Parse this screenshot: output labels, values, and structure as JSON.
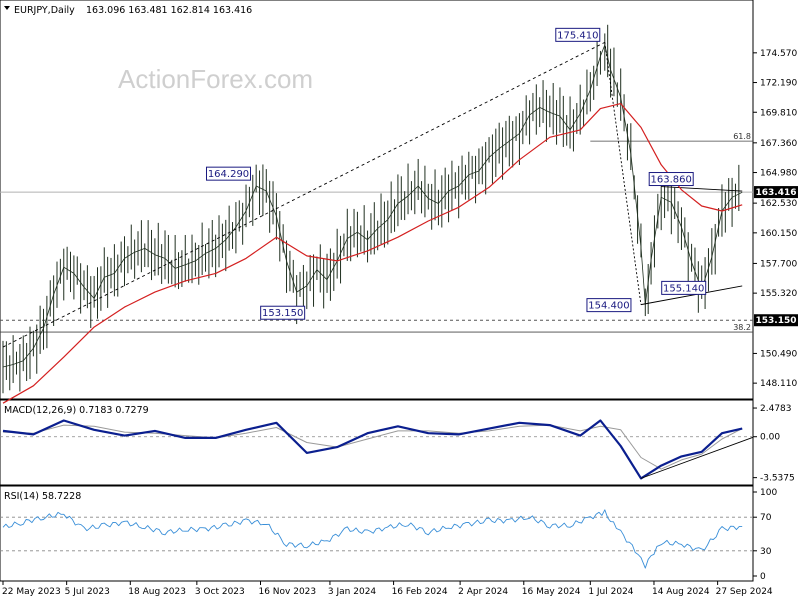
{
  "header": {
    "symbol": "EURJPY,Daily",
    "ohlc": "163.096 163.481 162.814 163.416"
  },
  "watermark": "ActionForex.com",
  "colors": {
    "price": "#1f2f1f",
    "sma": "#d42020",
    "macd": "#0b1f8f",
    "signal": "#9a9a9a",
    "rsi": "#3a8fd8",
    "annotation": "#1a1a80",
    "badge": "#000000"
  },
  "chart_data": [
    {
      "type": "line",
      "name": "price-panel",
      "title": "EURJPY,Daily",
      "x": [
        "2023-05-22",
        "2023-07-05",
        "2023-08-18",
        "2023-10-03",
        "2023-11-16",
        "2024-01-03",
        "2024-02-16",
        "2024-04-02",
        "2024-05-16",
        "2024-07-01",
        "2024-08-14",
        "2024-09-27"
      ],
      "x_tick_labels": [
        "22 May 2023",
        "5 Jul 2023",
        "18 Aug 2023",
        "3 Oct 2023",
        "16 Nov 2023",
        "3 Jan 2024",
        "16 Feb 2024",
        "2 Apr 2024",
        "16 May 2024",
        "1 Jul 2024",
        "14 Aug 2024",
        "27 Sep 2024"
      ],
      "y_tick_labels": [
        "174.570",
        "172.190",
        "169.810",
        "167.360",
        "164.980",
        "162.530",
        "160.150",
        "157.700",
        "155.320",
        "150.490",
        "148.110"
      ],
      "ylim": [
        147.0,
        177.2
      ],
      "series": [
        {
          "type": "price",
          "values": [
            [
              "2023-05-22",
              149.4
            ],
            [
              "2023-05-29",
              149.6
            ],
            [
              "2023-06-05",
              149.9
            ],
            [
              "2023-06-12",
              150.9
            ],
            [
              "2023-06-19",
              152.5
            ],
            [
              "2023-06-26",
              155.2
            ],
            [
              "2023-07-03",
              157.4
            ],
            [
              "2023-07-10",
              156.9
            ],
            [
              "2023-07-17",
              155.8
            ],
            [
              "2023-07-24",
              154.9
            ],
            [
              "2023-07-31",
              156.6
            ],
            [
              "2023-08-07",
              156.9
            ],
            [
              "2023-08-14",
              158.1
            ],
            [
              "2023-08-21",
              158.6
            ],
            [
              "2023-08-28",
              158.9
            ],
            [
              "2023-09-04",
              158.4
            ],
            [
              "2023-09-11",
              158.1
            ],
            [
              "2023-09-18",
              157.3
            ],
            [
              "2023-09-25",
              157.6
            ],
            [
              "2023-10-02",
              157.9
            ],
            [
              "2023-10-09",
              158.5
            ],
            [
              "2023-10-16",
              158.9
            ],
            [
              "2023-10-23",
              159.6
            ],
            [
              "2023-10-30",
              160.6
            ],
            [
              "2023-11-06",
              161.9
            ],
            [
              "2023-11-13",
              163.9
            ],
            [
              "2023-11-20",
              163.5
            ],
            [
              "2023-11-27",
              161.5
            ],
            [
              "2023-12-04",
              157.9
            ],
            [
              "2023-12-11",
              155.4
            ],
            [
              "2023-12-18",
              155.9
            ],
            [
              "2023-12-25",
              157.2
            ],
            [
              "2024-01-01",
              156.4
            ],
            [
              "2024-01-08",
              157.9
            ],
            [
              "2024-01-15",
              159.7
            ],
            [
              "2024-01-22",
              160.2
            ],
            [
              "2024-01-29",
              159.6
            ],
            [
              "2024-02-05",
              160.5
            ],
            [
              "2024-02-12",
              161.2
            ],
            [
              "2024-02-19",
              162.5
            ],
            [
              "2024-02-26",
              163.1
            ],
            [
              "2024-03-04",
              163.9
            ],
            [
              "2024-03-11",
              162.9
            ],
            [
              "2024-03-18",
              162.5
            ],
            [
              "2024-03-25",
              163.5
            ],
            [
              "2024-04-01",
              163.9
            ],
            [
              "2024-04-08",
              164.8
            ],
            [
              "2024-04-15",
              165.1
            ],
            [
              "2024-04-22",
              166.2
            ],
            [
              "2024-04-29",
              166.9
            ],
            [
              "2024-05-06",
              167.5
            ],
            [
              "2024-05-13",
              168.1
            ],
            [
              "2024-05-20",
              169.6
            ],
            [
              "2024-05-27",
              170.2
            ],
            [
              "2024-06-03",
              169.8
            ],
            [
              "2024-06-10",
              169.5
            ],
            [
              "2024-06-17",
              168.4
            ],
            [
              "2024-06-24",
              169.7
            ],
            [
              "2024-07-01",
              171.6
            ],
            [
              "2024-07-08",
              174.3
            ],
            [
              "2024-07-11",
              175.2
            ],
            [
              "2024-07-15",
              173.2
            ],
            [
              "2024-07-22",
              171.0
            ],
            [
              "2024-07-29",
              166.5
            ],
            [
              "2024-08-05",
              159.0
            ],
            [
              "2024-08-08",
              154.4
            ],
            [
              "2024-08-12",
              158.0
            ],
            [
              "2024-08-19",
              163.0
            ],
            [
              "2024-08-26",
              162.6
            ],
            [
              "2024-09-02",
              160.6
            ],
            [
              "2024-09-09",
              157.8
            ],
            [
              "2024-09-16",
              155.6
            ],
            [
              "2024-09-23",
              158.2
            ],
            [
              "2024-09-30",
              161.9
            ],
            [
              "2024-10-07",
              163.0
            ],
            [
              "2024-10-14",
              163.4
            ]
          ]
        },
        {
          "type": "sma",
          "values": [
            [
              "2023-05-22",
              146.5
            ],
            [
              "2023-06-12",
              147.9
            ],
            [
              "2023-07-03",
              150.2
            ],
            [
              "2023-07-24",
              152.6
            ],
            [
              "2023-08-14",
              154.2
            ],
            [
              "2023-09-04",
              155.4
            ],
            [
              "2023-09-25",
              156.3
            ],
            [
              "2023-10-16",
              156.9
            ],
            [
              "2023-11-06",
              158.1
            ],
            [
              "2023-11-27",
              159.8
            ],
            [
              "2023-12-18",
              158.3
            ],
            [
              "2024-01-08",
              157.9
            ],
            [
              "2024-01-29",
              158.7
            ],
            [
              "2024-02-19",
              159.8
            ],
            [
              "2024-03-11",
              161.1
            ],
            [
              "2024-04-01",
              162.2
            ],
            [
              "2024-04-22",
              163.8
            ],
            [
              "2024-05-13",
              166.0
            ],
            [
              "2024-06-03",
              167.8
            ],
            [
              "2024-06-24",
              168.4
            ],
            [
              "2024-07-08",
              170.1
            ],
            [
              "2024-07-22",
              170.5
            ],
            [
              "2024-08-05",
              168.6
            ],
            [
              "2024-08-19",
              165.6
            ],
            [
              "2024-09-02",
              163.6
            ],
            [
              "2024-09-16",
              162.3
            ],
            [
              "2024-09-30",
              161.9
            ],
            [
              "2024-10-14",
              162.4
            ]
          ]
        }
      ],
      "annotations": [
        {
          "label": "175.410",
          "value": 175.41,
          "date": "2024-07-11"
        },
        {
          "label": "164.290",
          "value": 164.29,
          "date": "2023-11-16"
        },
        {
          "label": "163.860",
          "value": 163.86,
          "date": "2024-08-19"
        },
        {
          "label": "153.150",
          "value": 153.15,
          "date": "2023-12-11"
        },
        {
          "label": "154.400",
          "value": 154.4,
          "date": "2024-08-05"
        },
        {
          "label": "155.140",
          "value": 155.14,
          "date": "2024-09-16"
        }
      ],
      "levels": [
        {
          "label": "61.8",
          "value": 167.5
        },
        {
          "label": "38.2",
          "value": 152.2
        }
      ],
      "badges": [
        {
          "label": "163.416",
          "value": 163.416
        },
        {
          "label": "153.150",
          "value": 153.15
        }
      ],
      "grid": false
    },
    {
      "type": "line",
      "name": "macd-panel",
      "title": "MACD(12,26,9) 0.7183 0.7279",
      "y_tick_labels": [
        "2.4783",
        "0.00",
        "-3.5375"
      ],
      "ylim": [
        -4.0,
        3.0
      ],
      "series": [
        {
          "type": "macd",
          "values": [
            [
              "2023-05-22",
              0.5
            ],
            [
              "2023-06-12",
              0.2
            ],
            [
              "2023-07-03",
              1.4
            ],
            [
              "2023-07-24",
              0.6
            ],
            [
              "2023-08-14",
              0.1
            ],
            [
              "2023-09-04",
              0.5
            ],
            [
              "2023-09-25",
              -0.1
            ],
            [
              "2023-10-16",
              -0.1
            ],
            [
              "2023-11-06",
              0.6
            ],
            [
              "2023-11-27",
              1.2
            ],
            [
              "2023-12-18",
              -1.4
            ],
            [
              "2024-01-08",
              -0.9
            ],
            [
              "2024-01-29",
              0.3
            ],
            [
              "2024-02-19",
              0.9
            ],
            [
              "2024-03-11",
              0.3
            ],
            [
              "2024-04-01",
              0.2
            ],
            [
              "2024-04-22",
              0.7
            ],
            [
              "2024-05-13",
              1.2
            ],
            [
              "2024-06-03",
              1.0
            ],
            [
              "2024-06-24",
              0.1
            ],
            [
              "2024-07-08",
              1.4
            ],
            [
              "2024-07-22",
              -0.8
            ],
            [
              "2024-08-05",
              -3.6
            ],
            [
              "2024-08-19",
              -2.5
            ],
            [
              "2024-09-02",
              -1.7
            ],
            [
              "2024-09-16",
              -1.3
            ],
            [
              "2024-09-30",
              0.3
            ],
            [
              "2024-10-14",
              0.7
            ]
          ]
        },
        {
          "type": "signal",
          "values": [
            [
              "2023-05-22",
              0.4
            ],
            [
              "2023-06-12",
              0.3
            ],
            [
              "2023-07-03",
              1.0
            ],
            [
              "2023-07-24",
              0.9
            ],
            [
              "2023-08-14",
              0.4
            ],
            [
              "2023-09-04",
              0.3
            ],
            [
              "2023-09-25",
              0.1
            ],
            [
              "2023-10-16",
              -0.1
            ],
            [
              "2023-11-06",
              0.3
            ],
            [
              "2023-11-27",
              0.8
            ],
            [
              "2023-12-18",
              -0.5
            ],
            [
              "2024-01-08",
              -0.9
            ],
            [
              "2024-01-29",
              -0.2
            ],
            [
              "2024-02-19",
              0.5
            ],
            [
              "2024-03-11",
              0.5
            ],
            [
              "2024-04-01",
              0.3
            ],
            [
              "2024-04-22",
              0.5
            ],
            [
              "2024-05-13",
              0.9
            ],
            [
              "2024-06-03",
              1.0
            ],
            [
              "2024-06-24",
              0.5
            ],
            [
              "2024-07-08",
              0.9
            ],
            [
              "2024-07-22",
              0.6
            ],
            [
              "2024-08-05",
              -1.8
            ],
            [
              "2024-08-19",
              -2.8
            ],
            [
              "2024-09-02",
              -2.0
            ],
            [
              "2024-09-16",
              -1.5
            ],
            [
              "2024-09-30",
              -0.2
            ],
            [
              "2024-10-14",
              0.7
            ]
          ]
        }
      ]
    },
    {
      "type": "line",
      "name": "rsi-panel",
      "title": "RSI(14) 58.7228",
      "y_tick_labels": [
        "100",
        "70",
        "30",
        "0"
      ],
      "ylim": [
        0,
        100
      ],
      "series": [
        {
          "type": "rsi",
          "values": [
            [
              "2023-05-22",
              58
            ],
            [
              "2023-06-05",
              64
            ],
            [
              "2023-06-19",
              70
            ],
            [
              "2023-07-03",
              74
            ],
            [
              "2023-07-17",
              56
            ],
            [
              "2023-07-31",
              60
            ],
            [
              "2023-08-14",
              64
            ],
            [
              "2023-08-28",
              58
            ],
            [
              "2023-09-11",
              52
            ],
            [
              "2023-09-25",
              55
            ],
            [
              "2023-10-09",
              56
            ],
            [
              "2023-10-23",
              60
            ],
            [
              "2023-11-06",
              66
            ],
            [
              "2023-11-20",
              62
            ],
            [
              "2023-12-04",
              38
            ],
            [
              "2023-12-18",
              36
            ],
            [
              "2024-01-01",
              42
            ],
            [
              "2024-01-15",
              56
            ],
            [
              "2024-01-29",
              52
            ],
            [
              "2024-02-12",
              58
            ],
            [
              "2024-02-26",
              62
            ],
            [
              "2024-03-11",
              52
            ],
            [
              "2024-03-25",
              58
            ],
            [
              "2024-04-08",
              62
            ],
            [
              "2024-04-22",
              66
            ],
            [
              "2024-05-06",
              66
            ],
            [
              "2024-05-20",
              70
            ],
            [
              "2024-06-03",
              60
            ],
            [
              "2024-06-17",
              60
            ],
            [
              "2024-07-01",
              70
            ],
            [
              "2024-07-11",
              76
            ],
            [
              "2024-07-22",
              52
            ],
            [
              "2024-08-05",
              22
            ],
            [
              "2024-08-08",
              12
            ],
            [
              "2024-08-19",
              40
            ],
            [
              "2024-09-02",
              38
            ],
            [
              "2024-09-16",
              30
            ],
            [
              "2024-09-30",
              56
            ],
            [
              "2024-10-14",
              59
            ]
          ]
        }
      ],
      "levels": [
        70,
        30
      ]
    }
  ]
}
